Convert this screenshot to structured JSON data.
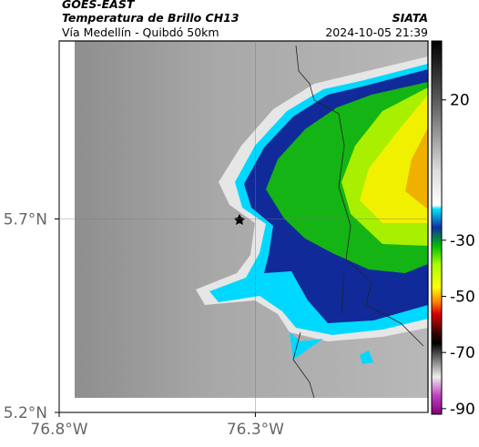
{
  "header": {
    "title": "GOES-EAST",
    "subtitle": "Temperatura de Brillo CH13",
    "source": "SIATA",
    "route": "Vía Medellín - Quibdó 50km",
    "datetime": "2024-10-05 21:39"
  },
  "map": {
    "xlim": [
      -76.8,
      -75.86
    ],
    "ylim": [
      5.2,
      6.16
    ],
    "xticks": [
      {
        "value": -76.8,
        "label": "76.8°W"
      },
      {
        "value": -76.3,
        "label": "76.3°W"
      }
    ],
    "yticks": [
      {
        "value": 5.2,
        "label": "5.2°N"
      },
      {
        "value": 5.7,
        "label": "5.7°N"
      }
    ]
  },
  "colorbar": {
    "lim": [
      -92,
      41
    ],
    "ticks": [
      20,
      -30,
      -50,
      -70,
      -90
    ]
  }
}
